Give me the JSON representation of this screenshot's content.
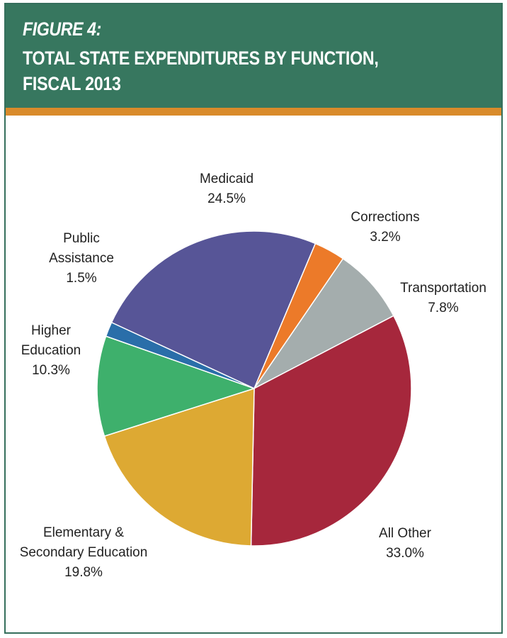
{
  "header": {
    "figure_label": "FIGURE 4:",
    "title_line_1": "TOTAL STATE EXPENDITURES BY FUNCTION,",
    "title_line_2": "FISCAL 2013"
  },
  "colors": {
    "header_bg": "#37775f",
    "accent_rule": "#d98b2b"
  },
  "chart_data": {
    "type": "pie",
    "title": "TOTAL STATE EXPENDITURES BY FUNCTION, FISCAL 2013",
    "slices": [
      {
        "label": "Medicaid",
        "value": 24.5,
        "value_text": "24.5%",
        "color": "#575597"
      },
      {
        "label": "Corrections",
        "value": 3.2,
        "value_text": "3.2%",
        "color": "#ec7a29"
      },
      {
        "label": "Transportation",
        "value": 7.8,
        "value_text": "7.8%",
        "color": "#a4adad"
      },
      {
        "label": "All Other",
        "value": 33.0,
        "value_text": "33.0%",
        "color": "#a6273c"
      },
      {
        "label": "Elementary & Secondary Education",
        "value": 19.8,
        "value_text": "19.8%",
        "color": "#dda933"
      },
      {
        "label": "Higher Education",
        "value": 10.3,
        "value_text": "10.3%",
        "color": "#3eb06c"
      },
      {
        "label": "Public Assistance",
        "value": 1.5,
        "value_text": "1.5%",
        "color": "#2a6ea9"
      }
    ]
  }
}
